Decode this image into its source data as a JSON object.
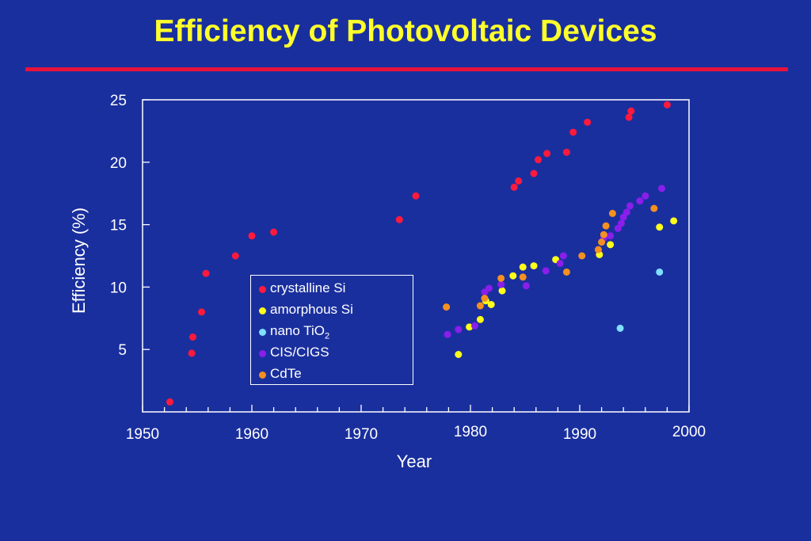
{
  "title": "Efficiency of Photovoltaic Devices",
  "chart_data": {
    "type": "scatter",
    "xlabel": "Year",
    "ylabel": "Efficiency (%)",
    "xlim": [
      1950,
      2000
    ],
    "ylim": [
      0,
      25
    ],
    "x_ticks": [
      "1950",
      "1960",
      "1970",
      "1980",
      "1990",
      "2000"
    ],
    "y_ticks": [
      "5",
      "10",
      "15",
      "20",
      "25"
    ],
    "grid": false,
    "legend_position": "center",
    "series": [
      {
        "name": "crystalline Si",
        "label_main": "crystalline Si",
        "label_sub": "",
        "color": "#ff1a3d",
        "points": [
          [
            1952.5,
            0.8
          ],
          [
            1954.5,
            4.7
          ],
          [
            1954.6,
            6.0
          ],
          [
            1955.4,
            8.0
          ],
          [
            1955.8,
            11.1
          ],
          [
            1958.5,
            12.5
          ],
          [
            1960,
            14.1
          ],
          [
            1962,
            14.4
          ],
          [
            1973.5,
            15.4
          ],
          [
            1975,
            17.3
          ],
          [
            1984,
            18.0
          ],
          [
            1984.4,
            18.5
          ],
          [
            1985.8,
            19.1
          ],
          [
            1986.2,
            20.2
          ],
          [
            1987,
            20.7
          ],
          [
            1988.8,
            20.8
          ],
          [
            1989.4,
            22.4
          ],
          [
            1990.7,
            23.2
          ],
          [
            1994.5,
            23.6
          ],
          [
            1994.7,
            24.1
          ],
          [
            1998,
            24.6
          ]
        ]
      },
      {
        "name": "amorphous Si",
        "label_main": "amorphous Si",
        "label_sub": "",
        "color": "#ffff1a",
        "points": [
          [
            1978.9,
            4.6
          ],
          [
            1979.9,
            6.8
          ],
          [
            1980.9,
            7.4
          ],
          [
            1981.4,
            8.9
          ],
          [
            1981.9,
            8.6
          ],
          [
            1982.9,
            9.7
          ],
          [
            1983.9,
            10.9
          ],
          [
            1984.8,
            11.6
          ],
          [
            1985.8,
            11.7
          ],
          [
            1987.8,
            12.2
          ],
          [
            1991.8,
            12.6
          ],
          [
            1992.8,
            13.4
          ],
          [
            1997.3,
            14.8
          ],
          [
            1998.6,
            15.3
          ]
        ]
      },
      {
        "name": "nano TiO2",
        "label_main": "nano TiO",
        "label_sub": "2",
        "color": "#7fe0ff",
        "points": [
          [
            1993.7,
            6.7
          ],
          [
            1997.3,
            11.2
          ]
        ]
      },
      {
        "name": "CIS/CIGS",
        "label_main": "CIS/CIGS",
        "label_sub": "",
        "color": "#8a1eea",
        "points": [
          [
            1977.9,
            6.2
          ],
          [
            1978.9,
            6.6
          ],
          [
            1980.4,
            6.9
          ],
          [
            1981.3,
            9.6
          ],
          [
            1981.7,
            9.9
          ],
          [
            1982.8,
            10.2
          ],
          [
            1985.1,
            10.1
          ],
          [
            1986.9,
            11.3
          ],
          [
            1988.2,
            11.9
          ],
          [
            1988.5,
            12.5
          ],
          [
            1992.2,
            13.9
          ],
          [
            1992.8,
            14.1
          ],
          [
            1993.5,
            14.7
          ],
          [
            1993.8,
            15.1
          ],
          [
            1994,
            15.6
          ],
          [
            1994.3,
            16.0
          ],
          [
            1994.6,
            16.5
          ],
          [
            1995.5,
            16.9
          ],
          [
            1996,
            17.3
          ],
          [
            1997.5,
            17.9
          ]
        ]
      },
      {
        "name": "CdTe",
        "label_main": "CdTe",
        "label_sub": "",
        "color": "#f39020",
        "points": [
          [
            1977.8,
            8.4
          ],
          [
            1980.9,
            8.5
          ],
          [
            1981.3,
            9.1
          ],
          [
            1982.8,
            10.7
          ],
          [
            1984.8,
            10.8
          ],
          [
            1988.8,
            11.2
          ],
          [
            1990.2,
            12.5
          ],
          [
            1991.7,
            13.0
          ],
          [
            1992,
            13.6
          ],
          [
            1992.2,
            14.2
          ],
          [
            1992.4,
            14.9
          ],
          [
            1993,
            15.9
          ],
          [
            1996.8,
            16.3
          ]
        ]
      }
    ]
  }
}
